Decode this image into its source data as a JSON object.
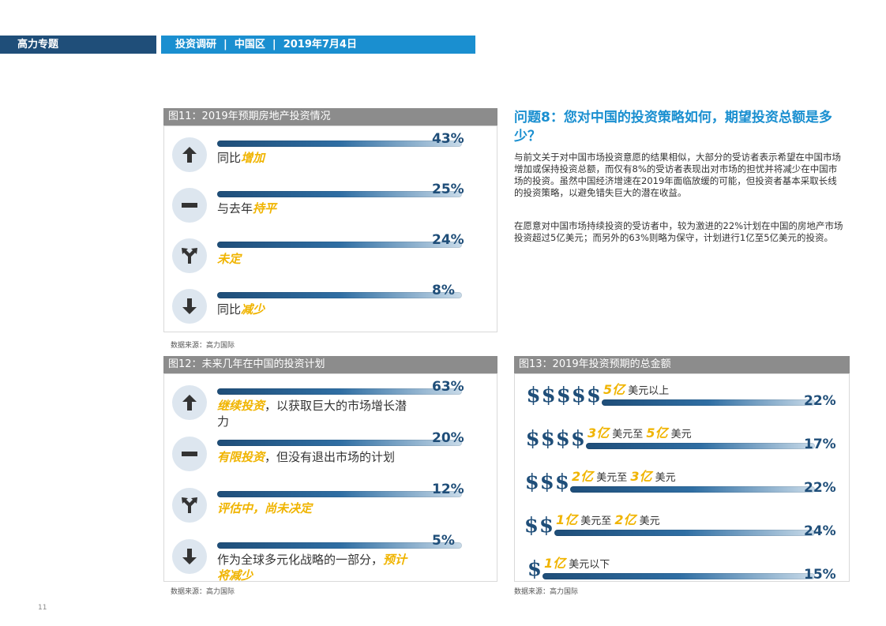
{
  "header": {
    "left": "高力专题",
    "right": "投资调研  |  中国区  |  2019年7月4日"
  },
  "fig11": {
    "title": "图11：2019年预期房地产投资情况",
    "source": "数据来源：高力国际"
  },
  "fig12": {
    "title": "图12：未来几年在中国的投资计划",
    "source": "数据来源：高力国际"
  },
  "fig13": {
    "title": "图13：2019年投资预期的总金额",
    "source": "数据来源：高力国际"
  },
  "question": {
    "title": "问题8：您对中国的投资策略如何，期望投资总额是多少？",
    "para1": "与前文关于对中国市场投资意愿的结果相似，大部分的受访者表示希望在中国市场增加或保持投资总额，而仅有8%的受访者表现出对市场的担忧并将减少在中国市场的投资。虽然中国经济增速在2019年面临放缓的可能，但投资者基本采取长线的投资策略，以避免错失巨大的潜在收益。",
    "para2": "在愿意对中国市场持续投资的受访者中，较为激进的22%计划在中国的房地产市场投资超过5亿美元；而另外的63%则略为保守，计划进行1亿至5亿美元的投资。"
  },
  "page_number": "11",
  "colors": {
    "navy": "#1f4e79",
    "blue": "#1a8fd0",
    "highlight": "#f0b400",
    "grey": "#8c8c8c"
  },
  "chart_data": [
    {
      "type": "bar",
      "title": "图11：2019年预期房地产投资情况",
      "categories": [
        "同比增加",
        "与去年持平",
        "未定",
        "同比减少"
      ],
      "values": [
        43,
        25,
        24,
        8
      ],
      "labels": [
        "43%",
        "25%",
        "24%",
        "8%"
      ],
      "icons": [
        "arrow-up-icon",
        "minus-icon",
        "fork-arrow-icon",
        "arrow-down-icon"
      ],
      "label_parts": [
        {
          "pre": "同比",
          "hl": "增加",
          "post": ""
        },
        {
          "pre": "与去年",
          "hl": "持平",
          "post": ""
        },
        {
          "pre": "",
          "hl": "未定",
          "post": ""
        },
        {
          "pre": "同比",
          "hl": "减少",
          "post": ""
        }
      ]
    },
    {
      "type": "bar",
      "title": "图12：未来几年在中国的投资计划",
      "categories": [
        "继续投资，以获取巨大的市场增长潜力",
        "有限投资，但没有退出市场的计划",
        "评估中，尚未决定",
        "作为全球多元化战略的一部分，预计将减少"
      ],
      "values": [
        63,
        20,
        12,
        5
      ],
      "labels": [
        "63%",
        "20%",
        "12%",
        "5%"
      ],
      "icons": [
        "arrow-up-icon",
        "minus-icon",
        "fork-arrow-icon",
        "arrow-down-icon"
      ],
      "label_parts": [
        {
          "pre": "",
          "hl": "继续投资",
          "post": "，以获取巨大的市场增长潜力"
        },
        {
          "pre": "",
          "hl": "有限投资",
          "post": "，但没有退出市场的计划"
        },
        {
          "pre": "",
          "hl": "评估中，尚未决定",
          "post": ""
        },
        {
          "pre": "作为全球多元化战略的一部分，",
          "hl": "预计将减少",
          "post": ""
        }
      ]
    },
    {
      "type": "bar",
      "title": "图13：2019年投资预期的总金额",
      "categories": [
        "5亿美元以上",
        "3亿美元至5亿美元",
        "2亿美元至3亿美元",
        "1亿美元至2亿美元",
        "1亿美元以下"
      ],
      "values": [
        22,
        17,
        22,
        24,
        15
      ],
      "labels": [
        "22%",
        "17%",
        "22%",
        "24%",
        "15%"
      ],
      "dollar_signs": [
        "$$$$$",
        "$$$$",
        "$$$",
        "$$",
        "$"
      ],
      "amount_parts": [
        [
          {
            "t": "5亿",
            "n": true
          },
          {
            "t": " 美元以上",
            "n": false
          }
        ],
        [
          {
            "t": "3亿",
            "n": true
          },
          {
            "t": " 美元至 ",
            "n": false
          },
          {
            "t": "5亿",
            "n": true
          },
          {
            "t": " 美元",
            "n": false
          }
        ],
        [
          {
            "t": "2亿",
            "n": true
          },
          {
            "t": " 美元至 ",
            "n": false
          },
          {
            "t": "3亿",
            "n": true
          },
          {
            "t": " 美元",
            "n": false
          }
        ],
        [
          {
            "t": "1亿",
            "n": true
          },
          {
            "t": " 美元至 ",
            "n": false
          },
          {
            "t": "2亿",
            "n": true
          },
          {
            "t": " 美元",
            "n": false
          }
        ],
        [
          {
            "t": "1亿",
            "n": true
          },
          {
            "t": " 美元以下",
            "n": false
          }
        ]
      ]
    }
  ]
}
